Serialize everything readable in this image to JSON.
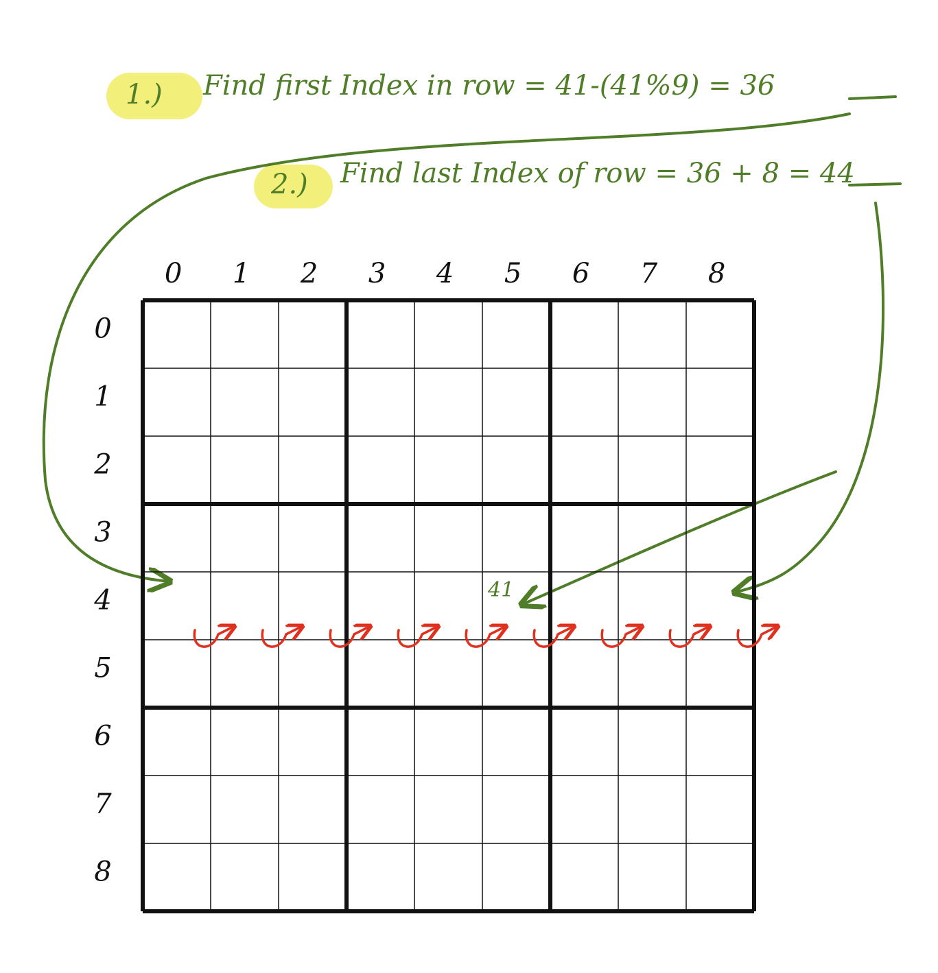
{
  "colors": {
    "annotation": "#4f7d28",
    "highlight": "#f2f07a",
    "traversal": "#e0301e",
    "grid": "#111111"
  },
  "steps": [
    {
      "number": "1.)",
      "text": "Find first Index in row = 41-(41%9) = 36"
    },
    {
      "number": "2.)",
      "text": "Find last Index of row = 36 + 8 = 44"
    }
  ],
  "grid": {
    "size": 9,
    "box": 3,
    "column_labels": [
      "0",
      "1",
      "2",
      "3",
      "4",
      "5",
      "6",
      "7",
      "8"
    ],
    "row_labels": [
      "0",
      "1",
      "2",
      "3",
      "4",
      "5",
      "6",
      "7",
      "8"
    ]
  },
  "marker": {
    "value": "41",
    "row": 4,
    "col": 5
  }
}
